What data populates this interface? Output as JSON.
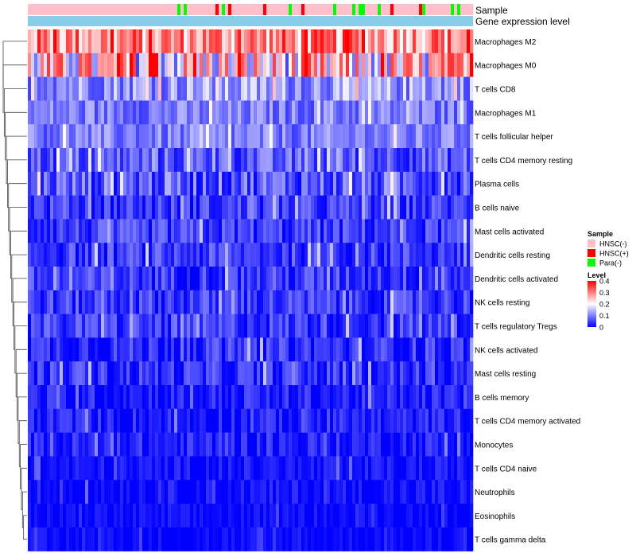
{
  "chart_data": {
    "type": "heatmap",
    "title": "",
    "annotation_tracks": [
      "Sample",
      "Gene expression level"
    ],
    "rows": [
      {
        "name": "Macrophages M2",
        "typical": 0.26,
        "spread": 0.1
      },
      {
        "name": "Macrophages M0",
        "typical": 0.16,
        "spread": 0.16
      },
      {
        "name": "T cells CD8",
        "typical": 0.1,
        "spread": 0.07
      },
      {
        "name": "Macrophages M1",
        "typical": 0.08,
        "spread": 0.05
      },
      {
        "name": "T cells follicular helper",
        "typical": 0.08,
        "spread": 0.05
      },
      {
        "name": "T cells CD4 memory resting",
        "typical": 0.05,
        "spread": 0.06
      },
      {
        "name": "Plasma cells",
        "typical": 0.05,
        "spread": 0.07
      },
      {
        "name": "B cells naive",
        "typical": 0.03,
        "spread": 0.05
      },
      {
        "name": "Mast cells activated",
        "typical": 0.03,
        "spread": 0.05
      },
      {
        "name": "Dendritic cells resting",
        "typical": 0.03,
        "spread": 0.05
      },
      {
        "name": "Dendritic cells activated",
        "typical": 0.03,
        "spread": 0.05
      },
      {
        "name": "NK cells resting",
        "typical": 0.03,
        "spread": 0.05
      },
      {
        "name": "T cells regulatory  Tregs",
        "typical": 0.03,
        "spread": 0.05
      },
      {
        "name": "NK cells activated",
        "typical": 0.02,
        "spread": 0.05
      },
      {
        "name": "Mast cells resting",
        "typical": 0.02,
        "spread": 0.05
      },
      {
        "name": "B cells memory",
        "typical": 0.01,
        "spread": 0.04
      },
      {
        "name": "T cells CD4 memory activated",
        "typical": 0.01,
        "spread": 0.04
      },
      {
        "name": "Monocytes",
        "typical": 0.01,
        "spread": 0.04
      },
      {
        "name": "T cells CD4 naive",
        "typical": 0.003,
        "spread": 0.03
      },
      {
        "name": "Neutrophils",
        "typical": 0.003,
        "spread": 0.03
      },
      {
        "name": "Eosinophils",
        "typical": 0.002,
        "spread": 0.02
      },
      {
        "name": "T cells gamma delta",
        "typical": 0.001,
        "spread": 0.02
      }
    ],
    "legend_sample": {
      "title": "Sample",
      "entries": [
        {
          "label": "HNSC(-)",
          "color": "#ffc0cb"
        },
        {
          "label": "HNSC(+)",
          "color": "#ff0000"
        },
        {
          "label": "Para(-)",
          "color": "#00ff00"
        }
      ]
    },
    "legend_level": {
      "title": "Level",
      "ticks": [
        "0.4",
        "0.3",
        "0.2",
        "0.1",
        "0"
      ],
      "range": [
        0,
        0.4
      ],
      "colors": {
        "low": "#0000ff",
        "mid": "#ffffff",
        "high": "#ff0000"
      }
    },
    "expression_track_color": "#87ceeb"
  }
}
